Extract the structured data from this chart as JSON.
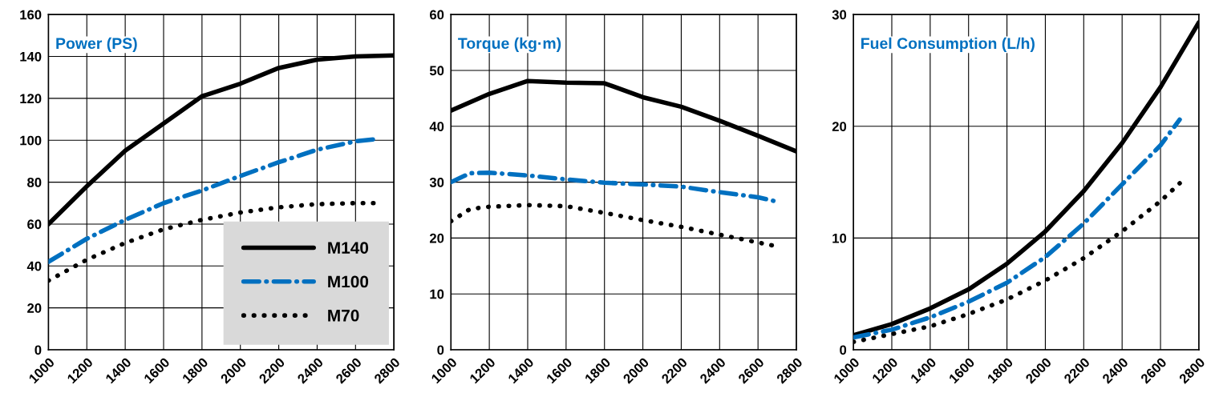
{
  "chart_data": [
    {
      "type": "line",
      "title": "Power (PS)",
      "x": [
        1000,
        1200,
        1400,
        1600,
        1800,
        2000,
        2200,
        2400,
        2600,
        2800
      ],
      "xlim": [
        1000,
        2800
      ],
      "xticks": [
        1000,
        1200,
        1400,
        1600,
        1800,
        2000,
        2200,
        2400,
        2600,
        2800
      ],
      "ylim": [
        0,
        160
      ],
      "yticks": [
        0,
        20,
        40,
        60,
        80,
        100,
        120,
        140,
        160
      ],
      "grid": true,
      "legend": "bottom right",
      "series": [
        {
          "name": "M140",
          "color": "#000000",
          "line_style": "solid",
          "values": [
            60,
            78,
            95,
            108,
            121,
            127,
            134.5,
            138.5,
            140,
            140.5
          ]
        },
        {
          "name": "M100",
          "color": "#0070c0",
          "line_style": "dashdot",
          "x": [
            1000,
            1200,
            1400,
            1600,
            1800,
            2000,
            2200,
            2400,
            2600,
            2700
          ],
          "values": [
            42,
            53,
            62,
            70,
            76,
            83,
            89.5,
            95.5,
            99.5,
            100.5
          ]
        },
        {
          "name": "M70",
          "color": "#000000",
          "line_style": "dotted",
          "x": [
            1000,
            1200,
            1400,
            1600,
            1800,
            2000,
            2200,
            2400,
            2600,
            2700
          ],
          "values": [
            33,
            43,
            51,
            57.5,
            62,
            65.5,
            68,
            69.5,
            70,
            70
          ]
        }
      ]
    },
    {
      "type": "line",
      "title": "Torque (kg·m)",
      "x": [
        1000,
        1200,
        1400,
        1600,
        1800,
        2000,
        2200,
        2400,
        2600,
        2800
      ],
      "xlim": [
        1000,
        2800
      ],
      "xticks": [
        1000,
        1200,
        1400,
        1600,
        1800,
        2000,
        2200,
        2400,
        2600,
        2800
      ],
      "ylim": [
        0,
        60
      ],
      "yticks": [
        0,
        10,
        20,
        30,
        40,
        50,
        60
      ],
      "grid": true,
      "series": [
        {
          "color": "#000000",
          "line_style": "solid",
          "values": [
            42.8,
            45.8,
            48.1,
            47.8,
            47.7,
            45.2,
            43.5,
            41,
            38.3,
            35.5
          ]
        },
        {
          "color": "#0070c0",
          "line_style": "dashdot",
          "x": [
            1000,
            1100,
            1200,
            1400,
            1600,
            1800,
            2000,
            2200,
            2400,
            2600,
            2700
          ],
          "values": [
            30,
            31.6,
            31.7,
            31.2,
            30.5,
            29.9,
            29.6,
            29.2,
            28.2,
            27.3,
            26.5
          ]
        },
        {
          "color": "#000000",
          "line_style": "dotted",
          "x": [
            1000,
            1100,
            1200,
            1400,
            1600,
            1800,
            2000,
            2200,
            2400,
            2600,
            2700
          ],
          "values": [
            23,
            25.2,
            25.6,
            25.9,
            25.7,
            24.5,
            23.2,
            22,
            20.6,
            19.2,
            18.5
          ]
        }
      ]
    },
    {
      "type": "line",
      "title": "Fuel Consumption (L/h)",
      "x": [
        1000,
        1200,
        1400,
        1600,
        1800,
        2000,
        2200,
        2400,
        2600,
        2800
      ],
      "xlim": [
        1000,
        2800
      ],
      "xticks": [
        1000,
        1200,
        1400,
        1600,
        1800,
        2000,
        2200,
        2400,
        2600,
        2800
      ],
      "ylim": [
        0,
        30
      ],
      "yticks": [
        0,
        10,
        20,
        30
      ],
      "grid": true,
      "series": [
        {
          "color": "#000000",
          "line_style": "solid",
          "values": [
            1.3,
            2.3,
            3.7,
            5.4,
            7.7,
            10.6,
            14.2,
            18.5,
            23.5,
            29.3
          ]
        },
        {
          "color": "#0070c0",
          "line_style": "dashdot",
          "x": [
            1000,
            1200,
            1400,
            1600,
            1800,
            2000,
            2200,
            2400,
            2600,
            2700
          ],
          "values": [
            1.1,
            1.8,
            2.9,
            4.3,
            6.0,
            8.3,
            11.3,
            14.8,
            18.3,
            20.6
          ]
        },
        {
          "color": "#000000",
          "line_style": "dotted",
          "x": [
            1000,
            1200,
            1400,
            1600,
            1800,
            2000,
            2200,
            2400,
            2600,
            2700
          ],
          "values": [
            0.7,
            1.4,
            2.1,
            3.2,
            4.5,
            6.2,
            8.2,
            10.6,
            13.3,
            14.9
          ]
        }
      ]
    }
  ]
}
